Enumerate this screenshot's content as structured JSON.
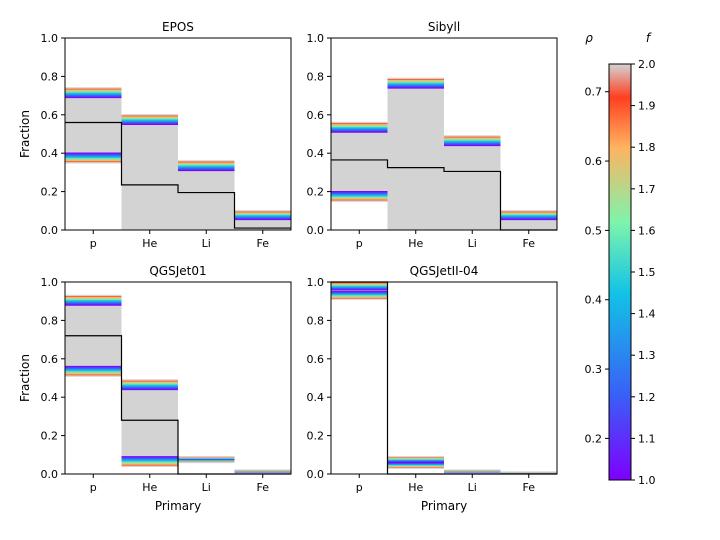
{
  "figure": {
    "colorbar": {
      "left_label": "ρ",
      "right_label": "f",
      "left_ticks": [
        "0.2",
        "0.3",
        "0.4",
        "0.5",
        "0.6",
        "0.7"
      ],
      "left_tick_values": [
        0.2,
        0.3,
        0.4,
        0.5,
        0.6,
        0.7
      ],
      "right_ticks": [
        "1.0",
        "1.1",
        "1.2",
        "1.3",
        "1.4",
        "1.5",
        "1.6",
        "1.7",
        "1.8",
        "1.9",
        "2.0"
      ],
      "right_tick_values": [
        1.0,
        1.1,
        1.2,
        1.3,
        1.4,
        1.5,
        1.6,
        1.7,
        1.8,
        1.9,
        2.0
      ],
      "f_range": [
        1.0,
        2.0
      ],
      "rho_range": [
        0.14,
        0.74
      ],
      "colors": [
        "#7f00ff",
        "#3a5ef6",
        "#12c3e6",
        "#7ef4ac",
        "#ffb360",
        "#ff3f20",
        "#d3d3d3"
      ]
    },
    "shade_color": "#d3d3d3",
    "line_color": "#000000"
  },
  "chart_data": [
    {
      "type": "bar",
      "title": "EPOS",
      "categories": [
        "p",
        "He",
        "Li",
        "Fe"
      ],
      "xlabel": "",
      "ylabel": "Fraction",
      "ylim": [
        0,
        1
      ],
      "yticks": [
        "0.0",
        "0.2",
        "0.4",
        "0.6",
        "0.8",
        "1.0"
      ],
      "band_low": [
        0.35,
        0.0,
        0.0,
        0.0
      ],
      "band_high": [
        0.74,
        0.6,
        0.36,
        0.1
      ],
      "reference": [
        0.56,
        0.235,
        0.195,
        0.01
      ]
    },
    {
      "type": "bar",
      "title": "Sibyll",
      "categories": [
        "p",
        "He",
        "Li",
        "Fe"
      ],
      "xlabel": "",
      "ylabel": "",
      "ylim": [
        0,
        1
      ],
      "yticks": [
        "0.0",
        "0.2",
        "0.4",
        "0.6",
        "0.8",
        "1.0"
      ],
      "band_low": [
        0.15,
        0.0,
        0.0,
        0.0
      ],
      "band_high": [
        0.56,
        0.79,
        0.49,
        0.1
      ],
      "reference": [
        0.365,
        0.325,
        0.305,
        0.0
      ]
    },
    {
      "type": "bar",
      "title": "QGSJet01",
      "categories": [
        "p",
        "He",
        "Li",
        "Fe"
      ],
      "xlabel": "Primary",
      "ylabel": "Fraction",
      "ylim": [
        0,
        1
      ],
      "yticks": [
        "0.0",
        "0.2",
        "0.4",
        "0.6",
        "0.8",
        "1.0"
      ],
      "band_low": [
        0.51,
        0.04,
        0.06,
        0.0
      ],
      "band_high": [
        0.93,
        0.49,
        0.09,
        0.02
      ],
      "reference": [
        0.72,
        0.28,
        0.0,
        0.0
      ]
    },
    {
      "type": "bar",
      "title": "QGSJetII-04",
      "categories": [
        "p",
        "He",
        "Li",
        "Fe"
      ],
      "xlabel": "Primary",
      "ylabel": "",
      "ylim": [
        0,
        1
      ],
      "yticks": [
        "0.0",
        "0.2",
        "0.4",
        "0.6",
        "0.8",
        "1.0"
      ],
      "band_low": [
        0.91,
        0.03,
        0.0,
        0.0
      ],
      "band_high": [
        1.0,
        0.09,
        0.02,
        0.01
      ],
      "reference": [
        1.0,
        0.0,
        0.0,
        0.0
      ]
    }
  ]
}
